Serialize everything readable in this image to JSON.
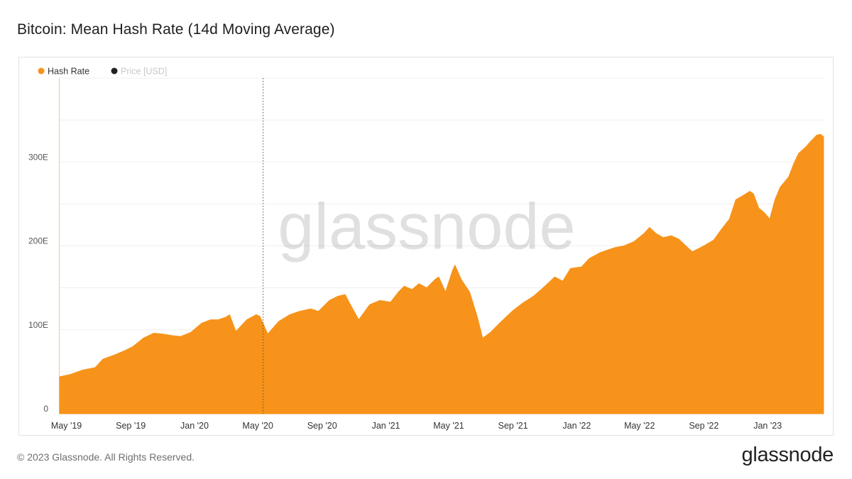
{
  "header": {
    "title": "Bitcoin: Mean Hash Rate (14d Moving Average)"
  },
  "footer": {
    "copyright": "© 2023 Glassnode. All Rights Reserved.",
    "logo_text": "glassnode"
  },
  "chart_data": {
    "type": "area",
    "title": "Bitcoin: Mean Hash Rate (14d Moving Average)",
    "watermark": "glassnode",
    "legend": {
      "placement": "top-left",
      "items": [
        {
          "label": "Hash Rate",
          "color": "#f7931a",
          "active": true
        },
        {
          "label": "Price [USD]",
          "color": "#222222",
          "active": false
        }
      ]
    },
    "y_axis": {
      "unit": "E",
      "ylim": [
        0,
        400
      ],
      "ticks": [
        {
          "value": 0,
          "label": "0"
        },
        {
          "value": 100,
          "label": "100E"
        },
        {
          "value": 200,
          "label": "200E"
        },
        {
          "value": 300,
          "label": "300E"
        }
      ],
      "gridlines": [
        0,
        50,
        100,
        150,
        200,
        250,
        300,
        350,
        400
      ]
    },
    "x_axis": {
      "range": [
        "2019-04-18",
        "2023-04-18"
      ],
      "ticks": [
        {
          "date": "2019-05-01",
          "label": "May '19"
        },
        {
          "date": "2019-09-01",
          "label": "Sep '19"
        },
        {
          "date": "2020-01-01",
          "label": "Jan '20"
        },
        {
          "date": "2020-05-01",
          "label": "May '20"
        },
        {
          "date": "2020-09-01",
          "label": "Sep '20"
        },
        {
          "date": "2021-01-01",
          "label": "Jan '21"
        },
        {
          "date": "2021-05-01",
          "label": "May '21"
        },
        {
          "date": "2021-09-01",
          "label": "Sep '21"
        },
        {
          "date": "2022-01-01",
          "label": "Jan '22"
        },
        {
          "date": "2022-05-01",
          "label": "May '22"
        },
        {
          "date": "2022-09-01",
          "label": "Sep '22"
        },
        {
          "date": "2023-01-01",
          "label": "Jan '23"
        }
      ]
    },
    "markers": [
      {
        "date": "2020-05-11",
        "style": "dotted"
      }
    ],
    "series": [
      {
        "name": "Hash Rate",
        "color": "#f7931a",
        "points": [
          [
            "2019-04-18",
            44
          ],
          [
            "2019-05-10",
            47
          ],
          [
            "2019-06-01",
            52
          ],
          [
            "2019-06-25",
            55
          ],
          [
            "2019-07-10",
            65
          ],
          [
            "2019-08-01",
            70
          ],
          [
            "2019-08-20",
            75
          ],
          [
            "2019-09-05",
            80
          ],
          [
            "2019-09-25",
            90
          ],
          [
            "2019-10-15",
            96
          ],
          [
            "2019-11-01",
            95
          ],
          [
            "2019-11-20",
            93
          ],
          [
            "2019-12-05",
            92
          ],
          [
            "2019-12-25",
            97
          ],
          [
            "2020-01-15",
            108
          ],
          [
            "2020-02-01",
            112
          ],
          [
            "2020-02-15",
            112
          ],
          [
            "2020-03-01",
            115
          ],
          [
            "2020-03-08",
            118
          ],
          [
            "2020-03-20",
            98
          ],
          [
            "2020-04-10",
            112
          ],
          [
            "2020-04-28",
            118
          ],
          [
            "2020-05-05",
            116
          ],
          [
            "2020-05-20",
            95
          ],
          [
            "2020-06-10",
            110
          ],
          [
            "2020-07-01",
            118
          ],
          [
            "2020-07-20",
            122
          ],
          [
            "2020-08-10",
            125
          ],
          [
            "2020-08-25",
            122
          ],
          [
            "2020-09-15",
            135
          ],
          [
            "2020-10-01",
            140
          ],
          [
            "2020-10-15",
            142
          ],
          [
            "2020-10-25",
            130
          ],
          [
            "2020-11-10",
            112
          ],
          [
            "2020-12-01",
            130
          ],
          [
            "2020-12-20",
            135
          ],
          [
            "2021-01-10",
            133
          ],
          [
            "2021-01-25",
            145
          ],
          [
            "2021-02-05",
            152
          ],
          [
            "2021-02-20",
            148
          ],
          [
            "2021-03-05",
            155
          ],
          [
            "2021-03-20",
            150
          ],
          [
            "2021-04-05",
            160
          ],
          [
            "2021-04-12",
            163
          ],
          [
            "2021-04-25",
            145
          ],
          [
            "2021-05-08",
            170
          ],
          [
            "2021-05-13",
            177
          ],
          [
            "2021-05-25",
            160
          ],
          [
            "2021-06-10",
            145
          ],
          [
            "2021-06-25",
            115
          ],
          [
            "2021-07-05",
            90
          ],
          [
            "2021-07-20",
            97
          ],
          [
            "2021-08-10",
            110
          ],
          [
            "2021-09-01",
            123
          ],
          [
            "2021-09-20",
            132
          ],
          [
            "2021-10-10",
            140
          ],
          [
            "2021-11-01",
            152
          ],
          [
            "2021-11-20",
            163
          ],
          [
            "2021-12-05",
            158
          ],
          [
            "2021-12-20",
            173
          ],
          [
            "2022-01-10",
            175
          ],
          [
            "2022-01-25",
            185
          ],
          [
            "2022-02-15",
            192
          ],
          [
            "2022-03-01",
            195
          ],
          [
            "2022-03-15",
            198
          ],
          [
            "2022-04-01",
            200
          ],
          [
            "2022-04-20",
            205
          ],
          [
            "2022-05-10",
            215
          ],
          [
            "2022-05-20",
            222
          ],
          [
            "2022-06-01",
            215
          ],
          [
            "2022-06-15",
            210
          ],
          [
            "2022-07-01",
            212
          ],
          [
            "2022-07-15",
            208
          ],
          [
            "2022-08-01",
            198
          ],
          [
            "2022-08-10",
            193
          ],
          [
            "2022-09-01",
            200
          ],
          [
            "2022-09-20",
            207
          ],
          [
            "2022-10-05",
            220
          ],
          [
            "2022-10-20",
            232
          ],
          [
            "2022-11-01",
            255
          ],
          [
            "2022-11-15",
            260
          ],
          [
            "2022-11-28",
            265
          ],
          [
            "2022-12-05",
            262
          ],
          [
            "2022-12-15",
            245
          ],
          [
            "2022-12-25",
            240
          ],
          [
            "2023-01-05",
            232
          ],
          [
            "2023-01-15",
            255
          ],
          [
            "2023-01-25",
            270
          ],
          [
            "2023-02-10",
            282
          ],
          [
            "2023-02-20",
            298
          ],
          [
            "2023-03-01",
            310
          ],
          [
            "2023-03-15",
            318
          ],
          [
            "2023-03-25",
            325
          ],
          [
            "2023-04-05",
            332
          ],
          [
            "2023-04-12",
            333
          ],
          [
            "2023-04-18",
            330
          ]
        ]
      }
    ]
  }
}
